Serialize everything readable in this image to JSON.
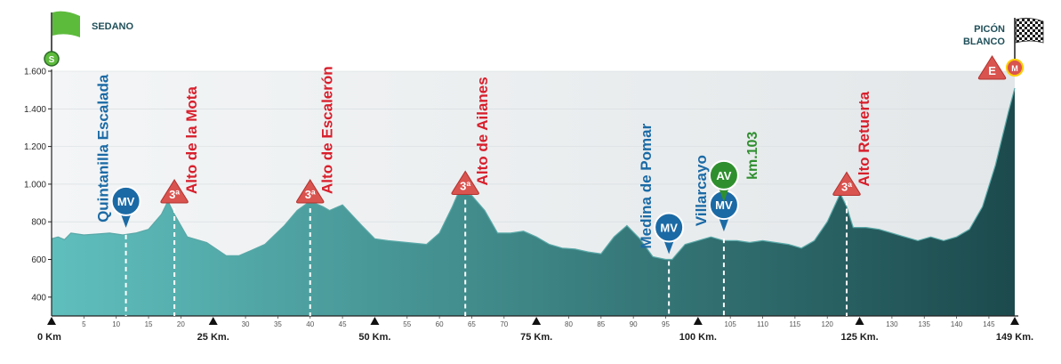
{
  "chart_data": {
    "type": "area",
    "x_unit": "Km",
    "y_unit": "m",
    "xlim": [
      0,
      149
    ],
    "ylim": [
      300,
      1600
    ],
    "yticks": [
      400,
      600,
      800,
      1000,
      1200,
      1400,
      1600
    ],
    "ytick_labels": [
      "400",
      "600",
      "800",
      "1.000",
      "1.200",
      "1.400",
      "1.600"
    ],
    "minor_xticks": [
      5,
      10,
      15,
      20,
      30,
      35,
      40,
      45,
      55,
      60,
      65,
      70,
      80,
      85,
      90,
      95,
      105,
      110,
      115,
      120,
      130,
      135,
      140,
      145
    ],
    "major_xticks": [
      {
        "km": 0,
        "label": "0 Km"
      },
      {
        "km": 25,
        "label": "25 Km."
      },
      {
        "km": 50,
        "label": "50 Km."
      },
      {
        "km": 75,
        "label": "75 Km."
      },
      {
        "km": 100,
        "label": "100 Km."
      },
      {
        "km": 125,
        "label": "125 Km."
      },
      {
        "km": 149,
        "label": "149 Km."
      }
    ],
    "profile": {
      "x": [
        0,
        1,
        2,
        3,
        5,
        7,
        9,
        11,
        13,
        15,
        17,
        18,
        19,
        21,
        24,
        27,
        29,
        31,
        33,
        36,
        38,
        40,
        42,
        43,
        45,
        48,
        50,
        52,
        55,
        58,
        60,
        62,
        63,
        64,
        65,
        67,
        69,
        71,
        73,
        75,
        77,
        79,
        81,
        83,
        85,
        87,
        89,
        91,
        93,
        95,
        96,
        98,
        100,
        102,
        104,
        106,
        108,
        110,
        112,
        114,
        116,
        118,
        120,
        122,
        123,
        124,
        126,
        128,
        130,
        132,
        134,
        136,
        138,
        140,
        142,
        144,
        146,
        148,
        149
      ],
      "y": [
        710,
        720,
        705,
        740,
        730,
        735,
        740,
        730,
        740,
        760,
        840,
        910,
        840,
        720,
        690,
        620,
        620,
        650,
        680,
        780,
        860,
        910,
        880,
        860,
        890,
        780,
        710,
        700,
        690,
        680,
        740,
        880,
        960,
        950,
        940,
        860,
        740,
        740,
        750,
        720,
        680,
        660,
        655,
        640,
        630,
        720,
        780,
        710,
        615,
        600,
        600,
        680,
        700,
        720,
        700,
        700,
        690,
        700,
        690,
        680,
        660,
        700,
        800,
        950,
        880,
        770,
        770,
        760,
        740,
        720,
        700,
        720,
        700,
        720,
        760,
        880,
        1100,
        1380,
        1510
      ]
    },
    "markers": [
      {
        "km": 0,
        "alt": 1600,
        "type": "start",
        "symbol": "S"
      },
      {
        "km": 11.5,
        "alt": 740,
        "type": "MV",
        "label": "Quintanilla Escalada",
        "label_color": "blue"
      },
      {
        "km": 19,
        "alt": 910,
        "type": "climb",
        "category": "3ª",
        "label": "Alto de la Mota",
        "label_color": "red"
      },
      {
        "km": 40,
        "alt": 910,
        "type": "climb",
        "category": "3ª",
        "label": "Alto de Escalerón",
        "label_color": "red"
      },
      {
        "km": 64,
        "alt": 955,
        "type": "climb",
        "category": "3ª",
        "label": "Alto de Ailanes",
        "label_color": "red"
      },
      {
        "km": 95.5,
        "alt": 600,
        "type": "MV",
        "label": "Medina de Pomar",
        "label_color": "blue"
      },
      {
        "km": 104,
        "alt": 720,
        "type": "MV",
        "label": "Villarcayo",
        "label_color": "blue"
      },
      {
        "km": 104,
        "alt": 1000,
        "type": "AV",
        "label": "km.103",
        "label_color": "green"
      },
      {
        "km": 123,
        "alt": 950,
        "type": "climb",
        "category": "3ª",
        "label": "Alto Retuerta",
        "label_color": "red"
      },
      {
        "km": 149,
        "alt": 1600,
        "type": "finish",
        "symbol": "M"
      }
    ],
    "start_town": "SEDANO",
    "finish_town": [
      "PICÓN",
      "BLANCO"
    ],
    "finish_climb_category": "E",
    "grid": false
  },
  "colors": {
    "fill_left": "#5fbfbd",
    "fill_right": "#1c4a4d",
    "ridge": "#5aa8a8",
    "pin_blue": "#1b6aa5",
    "pin_green": "#2f8f2f",
    "triangle_red": "#d9534f",
    "flag_green": "#5dbb3c"
  }
}
